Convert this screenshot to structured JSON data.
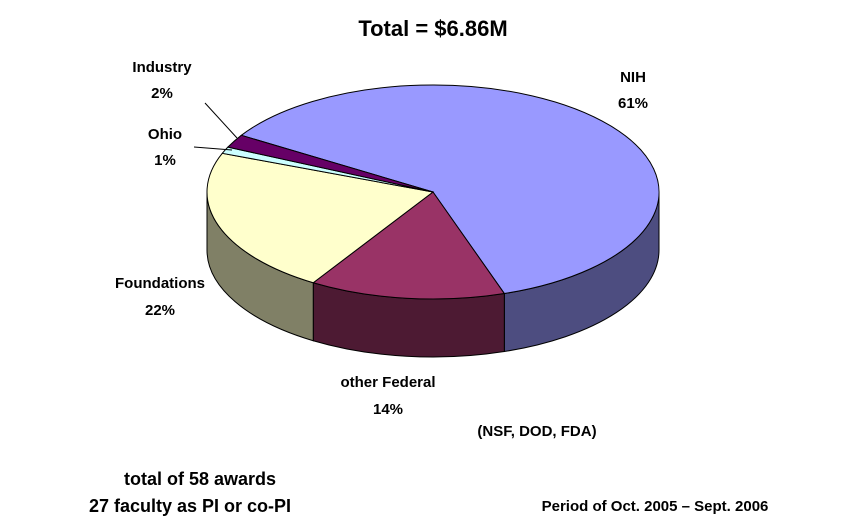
{
  "chart_data": {
    "type": "pie",
    "title": "Total = $6.86M",
    "categories": [
      "NIH",
      "other Federal",
      "Foundations",
      "Ohio",
      "Industry"
    ],
    "values": [
      61,
      14,
      22,
      1,
      2
    ],
    "value_labels": [
      "61%",
      "14%",
      "22%",
      "1%",
      "2%"
    ],
    "colors": [
      "#9999ff",
      "#993366",
      "#ffffcc",
      "#ccffff",
      "#660066"
    ],
    "annotations": [
      "(NSF, DOD, FDA)",
      "total of 58 awards",
      "27 faculty as PI or co-PI",
      "Period of Oct. 2005 – Sept. 2006"
    ]
  }
}
